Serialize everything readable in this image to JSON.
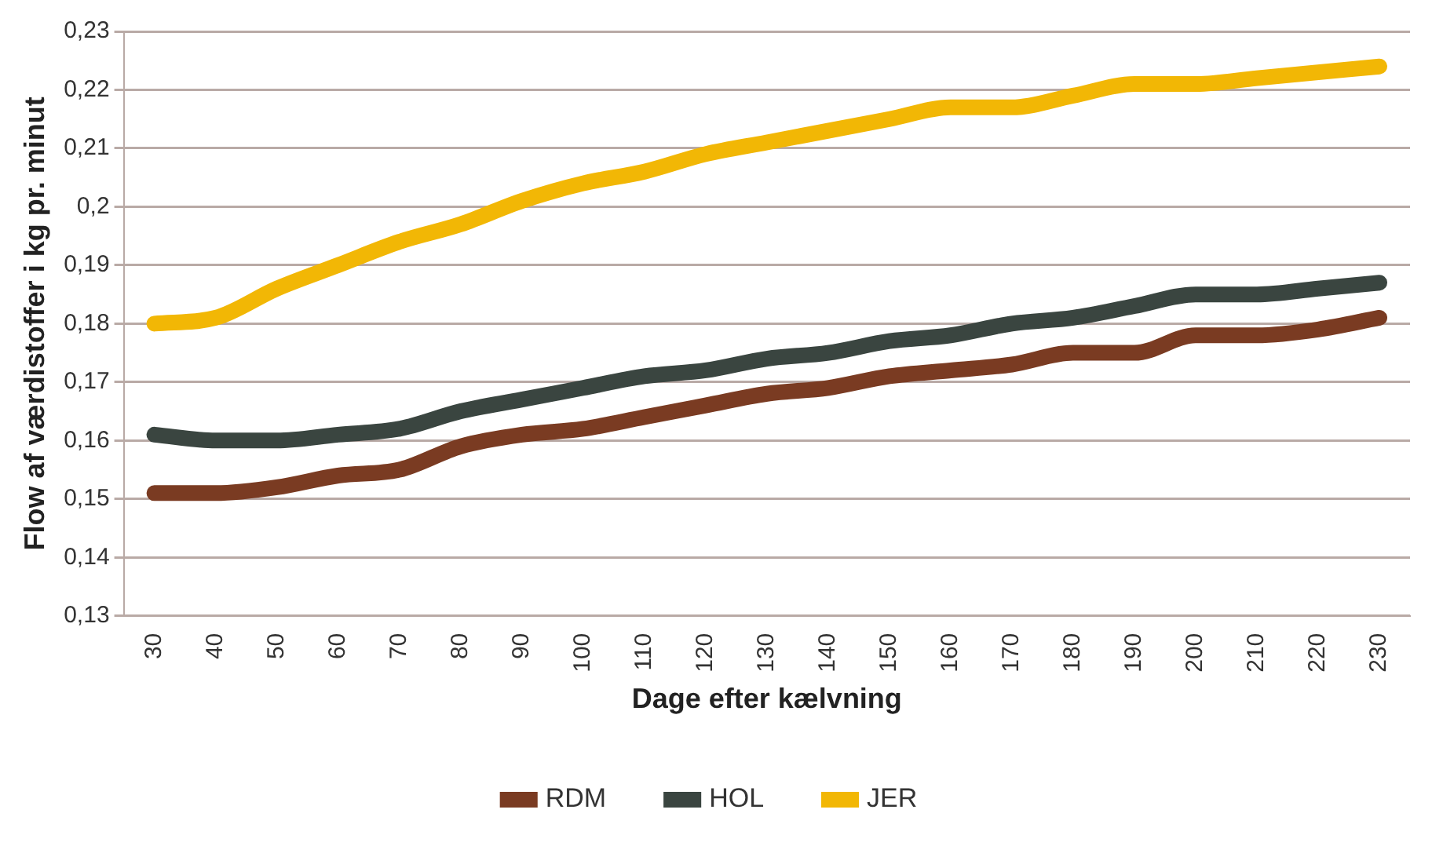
{
  "chart_data": {
    "type": "line",
    "xlabel": "Dage efter kælvning",
    "ylabel": "Flow af værdistoffer i kg pr. minut",
    "categories": [
      "30",
      "40",
      "50",
      "60",
      "70",
      "80",
      "90",
      "100",
      "110",
      "120",
      "130",
      "140",
      "150",
      "160",
      "170",
      "180",
      "190",
      "200",
      "210",
      "220",
      "230"
    ],
    "series": [
      {
        "name": "RDM",
        "color": "#7a3b22",
        "values": [
          0.151,
          0.151,
          0.152,
          0.154,
          0.155,
          0.159,
          0.161,
          0.162,
          0.164,
          0.166,
          0.168,
          0.169,
          0.171,
          0.172,
          0.173,
          0.175,
          0.175,
          0.178,
          0.178,
          0.179,
          0.181
        ]
      },
      {
        "name": "HOL",
        "color": "#3a4540",
        "values": [
          0.161,
          0.16,
          0.16,
          0.161,
          0.162,
          0.165,
          0.167,
          0.169,
          0.171,
          0.172,
          0.174,
          0.175,
          0.177,
          0.178,
          0.18,
          0.181,
          0.183,
          0.185,
          0.185,
          0.186,
          0.187
        ]
      },
      {
        "name": "JER",
        "color": "#f2b705",
        "values": [
          0.18,
          0.181,
          0.186,
          0.19,
          0.194,
          0.197,
          0.201,
          0.204,
          0.206,
          0.209,
          0.211,
          0.213,
          0.215,
          0.217,
          0.217,
          0.219,
          0.221,
          0.221,
          0.222,
          0.223,
          0.224
        ]
      }
    ],
    "ylim": [
      0.13,
      0.23
    ],
    "yticks": [
      {
        "value": 0.13,
        "label": "0,13"
      },
      {
        "value": 0.14,
        "label": "0,14"
      },
      {
        "value": 0.15,
        "label": "0,15"
      },
      {
        "value": 0.16,
        "label": "0,16"
      },
      {
        "value": 0.17,
        "label": "0,17"
      },
      {
        "value": 0.18,
        "label": "0,18"
      },
      {
        "value": 0.19,
        "label": "0,19"
      },
      {
        "value": 0.2,
        "label": "0,2"
      },
      {
        "value": 0.21,
        "label": "0,21"
      },
      {
        "value": 0.22,
        "label": "0,22"
      },
      {
        "value": 0.23,
        "label": "0,23"
      }
    ],
    "grid": "y",
    "legend": "bottom",
    "marker": "none",
    "line_style": "solid"
  }
}
